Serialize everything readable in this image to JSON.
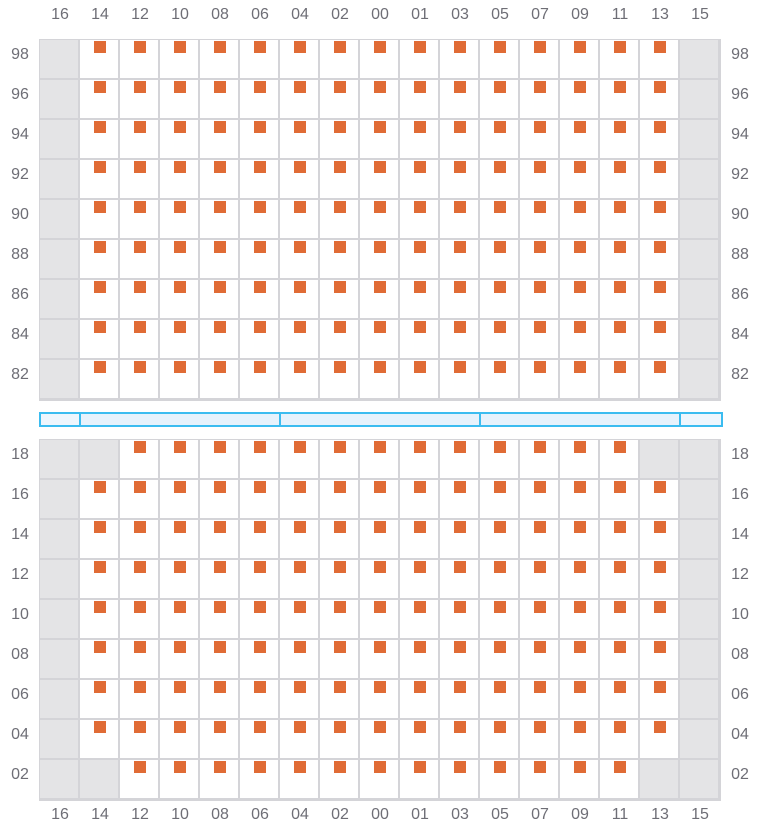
{
  "colors": {
    "seat": "#e06b35",
    "blocked": "#e4e4e6",
    "stage": "#3bbcf0"
  },
  "columns": [
    "16",
    "14",
    "12",
    "10",
    "08",
    "06",
    "04",
    "02",
    "00",
    "01",
    "03",
    "05",
    "07",
    "09",
    "11",
    "13",
    "15"
  ],
  "upper_block": {
    "rows": [
      "98",
      "96",
      "94",
      "92",
      "90",
      "88",
      "86",
      "84",
      "82"
    ],
    "blocked_columns_all_rows": [
      "16",
      "15"
    ],
    "blocked_cells": []
  },
  "lower_block": {
    "rows": [
      "18",
      "16",
      "14",
      "12",
      "10",
      "08",
      "06",
      "04",
      "02"
    ],
    "blocked_columns_all_rows": [
      "16",
      "15"
    ],
    "blocked_cells": [
      [
        "18",
        "14"
      ],
      [
        "18",
        "13"
      ],
      [
        "02",
        "14"
      ],
      [
        "02",
        "13"
      ]
    ]
  },
  "stage_segments": 5
}
